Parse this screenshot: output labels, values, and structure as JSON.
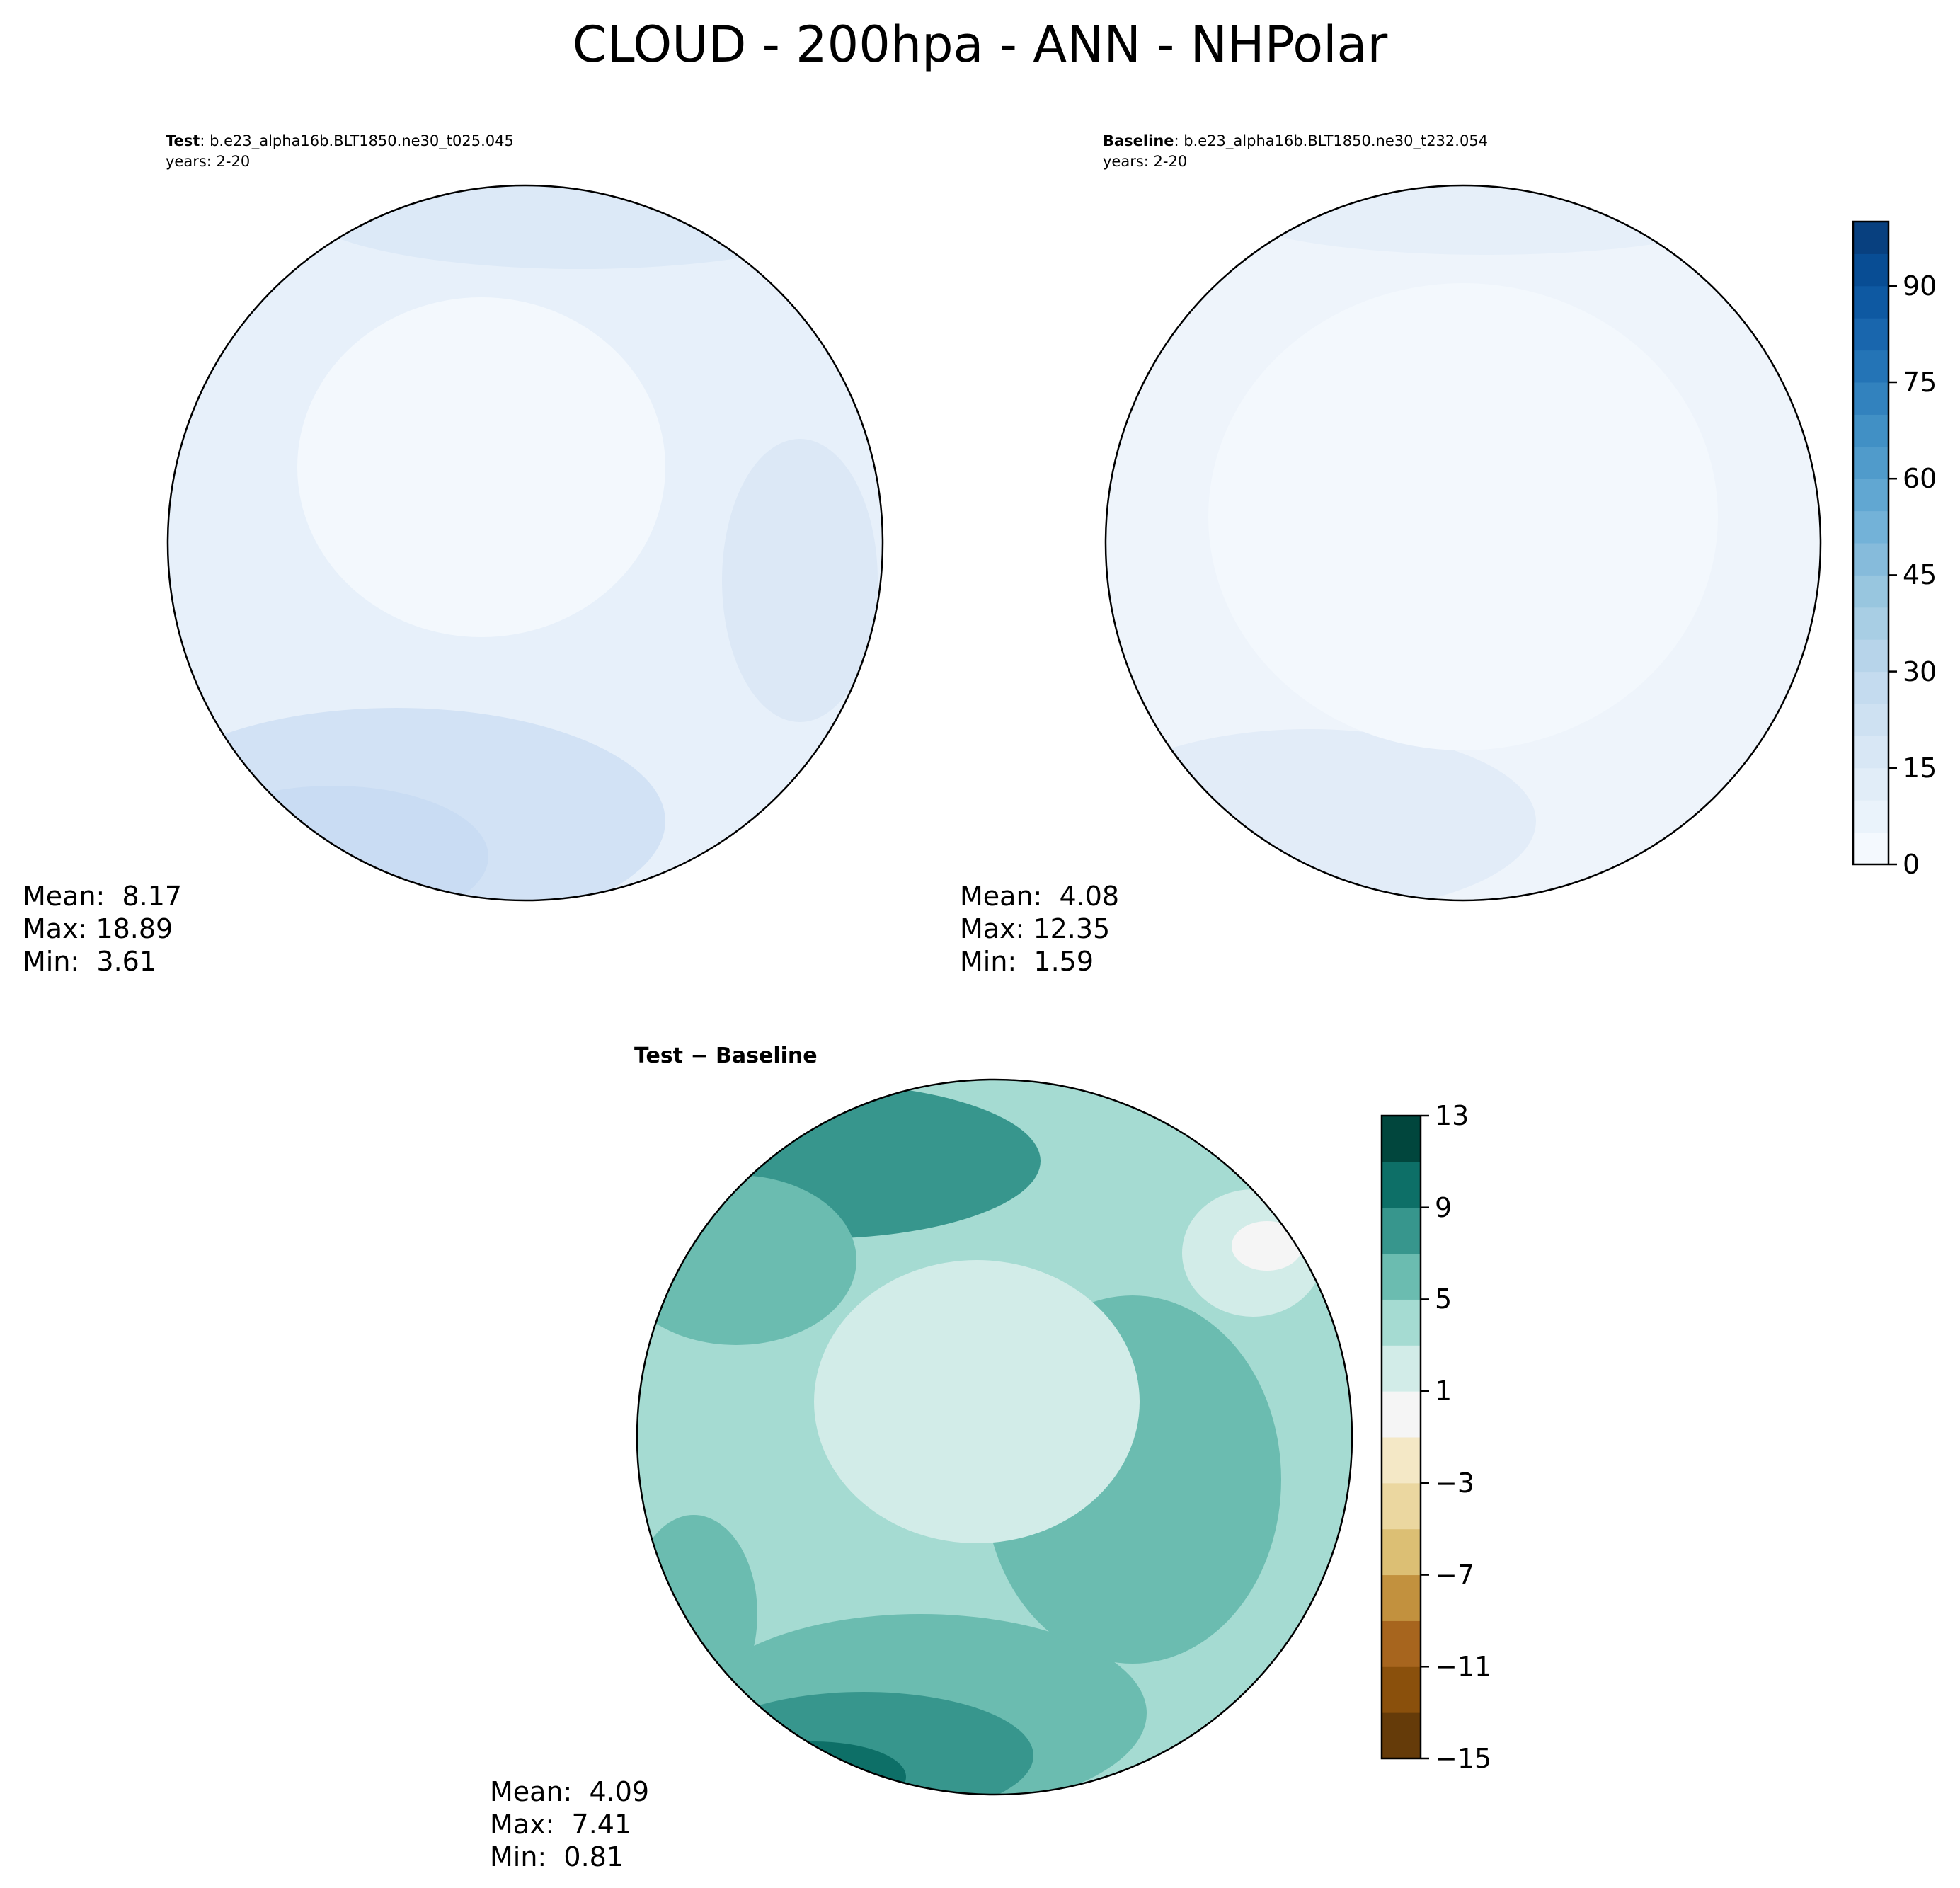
{
  "title": "CLOUD - 200hpa - ANN - NHPolar",
  "panels": {
    "test": {
      "label": "Test",
      "case": ": b.e23_alpha16b.BLT1850.ne30_t025.045",
      "years": "years: 2-20",
      "mean": "Mean:  8.17",
      "max": "Max: 18.89",
      "min": "Min:  3.61"
    },
    "baseline": {
      "label": "Baseline",
      "case": ": b.e23_alpha16b.BLT1850.ne30_t232.054",
      "years": "years: 2-20",
      "mean": "Mean:  4.08",
      "max": "Max: 12.35",
      "min": "Min:  1.59"
    },
    "diff": {
      "title": "Test − Baseline",
      "mean": "Mean:  4.09",
      "max": "Max:  7.41",
      "min": "Min:  0.81"
    }
  },
  "colorbar_main": {
    "ticks": [
      "0",
      "15",
      "30",
      "45",
      "60",
      "75",
      "90"
    ],
    "tick_values": [
      0,
      15,
      30,
      45,
      60,
      75,
      90
    ],
    "range": [
      0,
      100
    ],
    "colors": [
      "#f4f9fe",
      "#eaf3fb",
      "#e1edf8",
      "#d8e7f5",
      "#cee1f2",
      "#c4dbef",
      "#b7d4ea",
      "#a8cee4",
      "#98c6df",
      "#86bbdb",
      "#73b2d8",
      "#61a7d2",
      "#509bcb",
      "#4190c5",
      "#3282be",
      "#2474b6",
      "#1966ad",
      "#0e59a2",
      "#084d94",
      "#08407f"
    ]
  },
  "colorbar_diff": {
    "ticks": [
      "13",
      "9",
      "5",
      "1",
      "−3",
      "−7",
      "−11",
      "−15"
    ],
    "tick_values": [
      13,
      9,
      5,
      1,
      -3,
      -7,
      -11,
      -15
    ],
    "range": [
      -15,
      13
    ],
    "colors": [
      "#653b09",
      "#8a500c",
      "#a7651e",
      "#c2913e",
      "#dcbf74",
      "#ebd7a0",
      "#f4e8c6",
      "#f5f5f5",
      "#d2ece8",
      "#a5dbd2",
      "#6bbcb0",
      "#37968d",
      "#0d6f67",
      "#01463d"
    ]
  }
}
